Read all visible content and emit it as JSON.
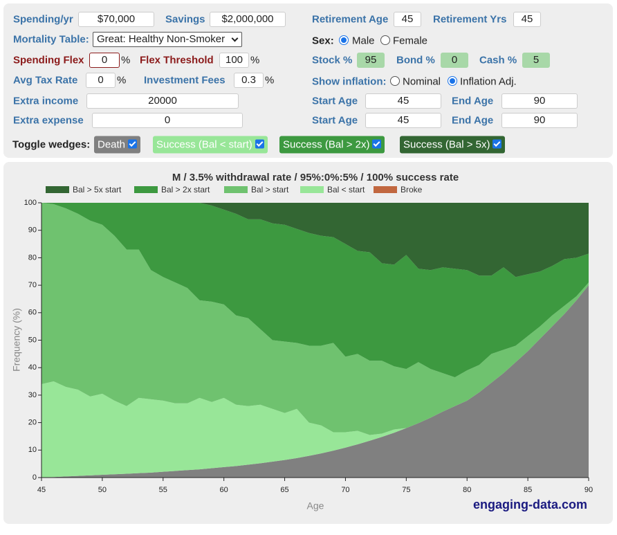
{
  "form": {
    "spending_yr": {
      "label": "Spending/yr",
      "value": "$70,000"
    },
    "savings": {
      "label": "Savings",
      "value": "$2,000,000"
    },
    "retirement_age": {
      "label": "Retirement Age",
      "value": "45"
    },
    "retirement_yrs": {
      "label": "Retirement Yrs",
      "value": "45"
    },
    "mortality_table": {
      "label": "Mortality Table:",
      "value": "Great: Healthy Non-Smoker"
    },
    "sex": {
      "label": "Sex:",
      "options": [
        "Male",
        "Female"
      ],
      "selected": 0
    },
    "spending_flex": {
      "label": "Spending Flex",
      "value": "0",
      "unit": "%"
    },
    "flex_threshold": {
      "label": "Flex Threshold",
      "value": "100",
      "unit": "%"
    },
    "stock": {
      "label": "Stock %",
      "value": "95"
    },
    "bond": {
      "label": "Bond %",
      "value": "0"
    },
    "cash": {
      "label": "Cash %",
      "value": "5"
    },
    "avg_tax_rate": {
      "label": "Avg Tax Rate",
      "value": "0",
      "unit": "%"
    },
    "investment_fees": {
      "label": "Investment Fees",
      "value": "0.3",
      "unit": "%"
    },
    "show_inflation": {
      "label": "Show inflation:",
      "options": [
        "Nominal",
        "Inflation Adj."
      ],
      "selected": 1
    },
    "extra_income": {
      "label": "Extra income",
      "value": "20000",
      "start_label": "Start Age",
      "start": "45",
      "end_label": "End Age",
      "end": "90"
    },
    "extra_expense": {
      "label": "Extra expense",
      "value": "0",
      "start_label": "Start Age",
      "start": "45",
      "end_label": "End Age",
      "end": "90"
    },
    "toggle_wedges": {
      "label": "Toggle wedges:",
      "buttons": [
        "Death",
        "Success (Bal < start)",
        "Success (Bal > 2x)",
        "Success (Bal > 5x)"
      ]
    }
  },
  "chart_data": {
    "type": "area",
    "stacked": true,
    "title": "M / 3.5% withdrawal rate / 95%:0%:5% / 100% success rate",
    "x_label": "Age",
    "y_label": "Frequency (%)",
    "watermark": "engaging-data.com",
    "x": [
      45,
      46,
      47,
      48,
      49,
      50,
      51,
      52,
      53,
      54,
      55,
      56,
      57,
      58,
      59,
      60,
      61,
      62,
      63,
      64,
      65,
      66,
      67,
      68,
      69,
      70,
      71,
      72,
      73,
      74,
      75,
      76,
      77,
      78,
      79,
      80,
      81,
      82,
      83,
      84,
      85,
      86,
      87,
      88,
      89,
      90
    ],
    "xlim": [
      45,
      90
    ],
    "xticks": [
      45,
      50,
      55,
      60,
      65,
      70,
      75,
      80,
      85,
      90
    ],
    "ylim": [
      0,
      100
    ],
    "yticks": [
      0,
      10,
      20,
      30,
      40,
      50,
      60,
      70,
      80,
      90,
      100
    ],
    "grid": false,
    "death": {
      "color": "#808080",
      "values": [
        0,
        0.2,
        0.4,
        0.6,
        0.8,
        1.0,
        1.2,
        1.4,
        1.6,
        1.8,
        2.1,
        2.4,
        2.7,
        3.0,
        3.4,
        3.8,
        4.2,
        4.7,
        5.2,
        5.8,
        6.4,
        7.1,
        7.9,
        8.8,
        9.8,
        10.9,
        12.1,
        13.4,
        14.8,
        16.3,
        18,
        19.8,
        21.8,
        24,
        26,
        28,
        31,
        34.5,
        38,
        42,
        46,
        50.5,
        55,
        59.5,
        64.5,
        70
      ]
    },
    "series": [
      {
        "name": "Bal > 5x start",
        "color": "#336633",
        "values": [
          0,
          0,
          0,
          0,
          0,
          0,
          0,
          0,
          0,
          0,
          0,
          0,
          0,
          0,
          1,
          2.5,
          4,
          6,
          6,
          7.5,
          8,
          9.5,
          11,
          12,
          12.5,
          15,
          17.5,
          18,
          22,
          22.5,
          19,
          24,
          24.5,
          23.5,
          24,
          24.5,
          26.5,
          26.5,
          23.5,
          27,
          26,
          25,
          23,
          20.5,
          20,
          18.5
        ]
      },
      {
        "name": "Bal > 2x start",
        "color": "#3d9940",
        "values": [
          0,
          0.5,
          2,
          4,
          6.5,
          8,
          12,
          17,
          17,
          24.5,
          27,
          29,
          31,
          35.5,
          35,
          34.5,
          37,
          36,
          40,
          42.5,
          42.5,
          41.5,
          41,
          40,
          38.5,
          41,
          37.5,
          39.5,
          35.5,
          37,
          41.5,
          34,
          36,
          38.5,
          39.5,
          36.5,
          32.5,
          28.5,
          30,
          25,
          22.5,
          20,
          18,
          17,
          14,
          10.5
        ]
      },
      {
        "name": "Bal > start",
        "color": "#6fc26f",
        "values": [
          66,
          64.5,
          65,
          64,
          64,
          61.5,
          60,
          57,
          54,
          47,
          45,
          44,
          42,
          35.5,
          36.5,
          34,
          32.5,
          32,
          27.5,
          25,
          26,
          24,
          28,
          29,
          32.5,
          27.5,
          28,
          27,
          26.5,
          23,
          21.5,
          22.2,
          17.7,
          14,
          10.5,
          11,
          10,
          10.5,
          8.5,
          6,
          5.5,
          4.5,
          4,
          3,
          1.5,
          1
        ]
      },
      {
        "name": "Bal < start",
        "color": "#98e698",
        "values": [
          34,
          34.8,
          32.6,
          31.4,
          28.7,
          29.5,
          26.8,
          24.6,
          27.4,
          26.7,
          25.9,
          24.6,
          24.3,
          26,
          24.1,
          25.2,
          22.3,
          21.3,
          21.3,
          19.2,
          17.1,
          17.9,
          12.1,
          10.2,
          6.7,
          5.6,
          4.9,
          2.1,
          1.2,
          1.2,
          0,
          0,
          0,
          0,
          0,
          0,
          0,
          0,
          0,
          0,
          0,
          0,
          0,
          0,
          0,
          0
        ]
      },
      {
        "name": "Broke",
        "color": "#c1673f",
        "values": [
          0,
          0,
          0,
          0,
          0,
          0,
          0,
          0,
          0,
          0,
          0,
          0,
          0,
          0,
          0,
          0,
          0,
          0,
          0,
          0,
          0,
          0,
          0,
          0,
          0,
          0,
          0,
          0,
          0,
          0,
          0,
          0,
          0,
          0,
          0,
          0,
          0,
          0,
          0,
          0,
          0,
          0,
          0,
          0,
          0,
          0
        ]
      }
    ]
  }
}
